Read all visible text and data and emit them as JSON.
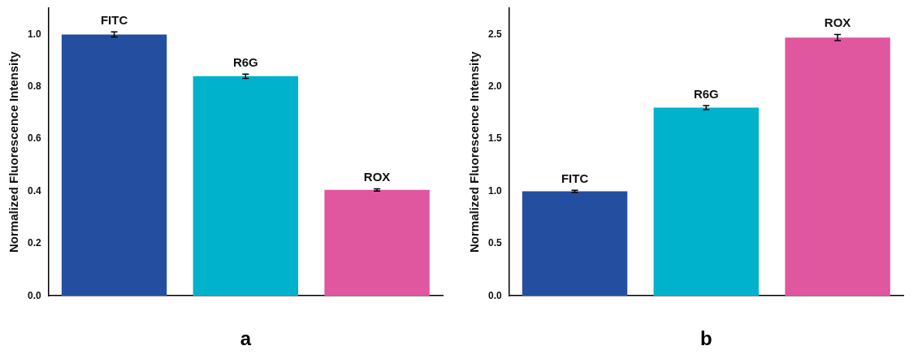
{
  "chart_data": [
    {
      "type": "bar",
      "xlabel": "a",
      "ylabel": "Normalized Fluorescence Intensity",
      "categories": [
        "FITC",
        "R6G",
        "ROX"
      ],
      "values": [
        1.0,
        0.84,
        0.405
      ],
      "errors": [
        0.01,
        0.008,
        0.004
      ],
      "colors": [
        "#244ea0",
        "#00b2cc",
        "#e0579f"
      ],
      "ylim": [
        0,
        1.1
      ],
      "yticks": [
        {
          "value": 0,
          "label": "0.0"
        },
        0.2,
        0.4,
        0.6,
        0.8,
        {
          "value": 1,
          "label": "1.0"
        }
      ],
      "grid": false,
      "legend": false,
      "tick_labels": "y"
    },
    {
      "type": "bar",
      "xlabel": "b",
      "ylabel": "Normalized Fluorescence Intensity",
      "categories": [
        "FITC",
        "R6G",
        "ROX"
      ],
      "values": [
        1.0,
        1.8,
        2.47
      ],
      "errors": [
        0.01,
        0.02,
        0.03
      ],
      "colors": [
        "#244ea0",
        "#00b2cc",
        "#e0579f"
      ],
      "ylim": [
        0,
        2.75
      ],
      "yticks": [
        {
          "value": 0,
          "label": "0.0"
        },
        0.5,
        {
          "value": 1,
          "label": "1.0"
        },
        1.5,
        {
          "value": 2,
          "label": "2.0"
        },
        2.5
      ],
      "grid": false,
      "legend": false,
      "tick_labels": "y"
    }
  ]
}
